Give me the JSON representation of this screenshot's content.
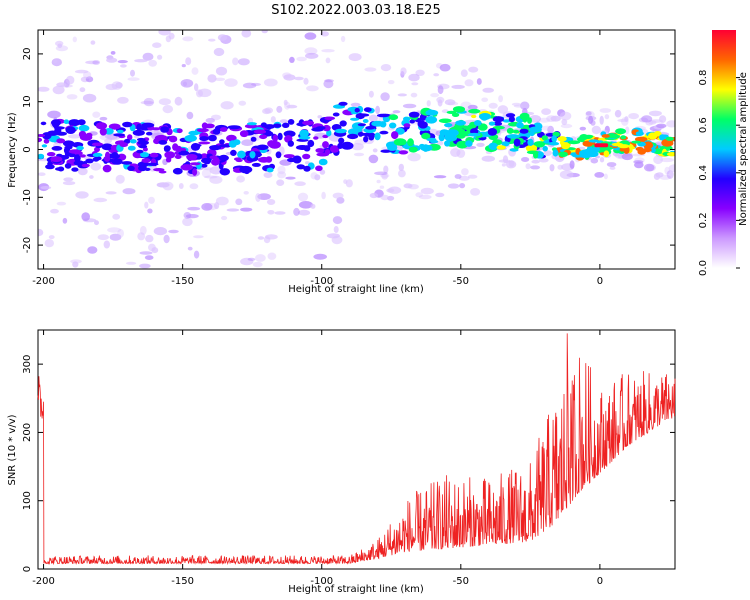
{
  "title": "S102.2022.003.03.18.E25",
  "colors": {
    "snr_line": "#ee2222",
    "axis": "#000000"
  },
  "chart_data": [
    {
      "type": "heatmap",
      "name": "spectrogram",
      "xlabel": "Height of straight line (km)",
      "ylabel": "Frequency (Hz)",
      "xlim": [
        -202,
        27
      ],
      "ylim": [
        -25,
        25
      ],
      "xticks": [
        -200,
        -150,
        -100,
        -50,
        0
      ],
      "yticks": [
        -20,
        -10,
        0,
        10,
        20
      ],
      "colorbar": {
        "label": "Normalized spectral amplitude",
        "range": [
          0,
          1
        ],
        "ticks": [
          "0.0",
          "0.2",
          "0.4",
          "0.6",
          "0.8"
        ],
        "colormap": [
          "#ffffff",
          "#cc99ff",
          "#8800ff",
          "#2200ff",
          "#00ccff",
          "#00ff66",
          "#ffff00",
          "#ff6600",
          "#ff0033"
        ]
      },
      "ridge": [
        {
          "x": -200,
          "y": 1
        },
        {
          "x": -150,
          "y": 0
        },
        {
          "x": -100,
          "y": 1
        },
        {
          "x": -90,
          "y": 6
        },
        {
          "x": -75,
          "y": 3
        },
        {
          "x": -50,
          "y": 5
        },
        {
          "x": -25,
          "y": 3
        },
        {
          "x": -10,
          "y": 0
        },
        {
          "x": 0,
          "y": 1
        },
        {
          "x": 10,
          "y": 2
        },
        {
          "x": 25,
          "y": 1
        }
      ]
    },
    {
      "type": "line",
      "name": "snr",
      "xlabel": "Height of straight line (km)",
      "ylabel": "SNR (10 * v/v)",
      "xlim": [
        -202,
        27
      ],
      "ylim": [
        0,
        350
      ],
      "xticks": [
        -200,
        -150,
        -100,
        -50,
        0
      ],
      "yticks": [
        0,
        100,
        200,
        300
      ],
      "envelope": [
        {
          "x": -200,
          "base": 8,
          "amp": 12
        },
        {
          "x": -90,
          "base": 8,
          "amp": 12
        },
        {
          "x": -80,
          "base": 15,
          "amp": 30
        },
        {
          "x": -70,
          "base": 25,
          "amp": 80
        },
        {
          "x": -55,
          "base": 30,
          "amp": 110
        },
        {
          "x": -40,
          "base": 35,
          "amp": 100
        },
        {
          "x": -25,
          "base": 40,
          "amp": 120
        },
        {
          "x": -15,
          "base": 70,
          "amp": 200
        },
        {
          "x": -8,
          "base": 110,
          "amp": 230
        },
        {
          "x": 0,
          "base": 140,
          "amp": 130
        },
        {
          "x": 10,
          "base": 180,
          "amp": 110
        },
        {
          "x": 25,
          "base": 220,
          "amp": 70
        }
      ]
    }
  ]
}
